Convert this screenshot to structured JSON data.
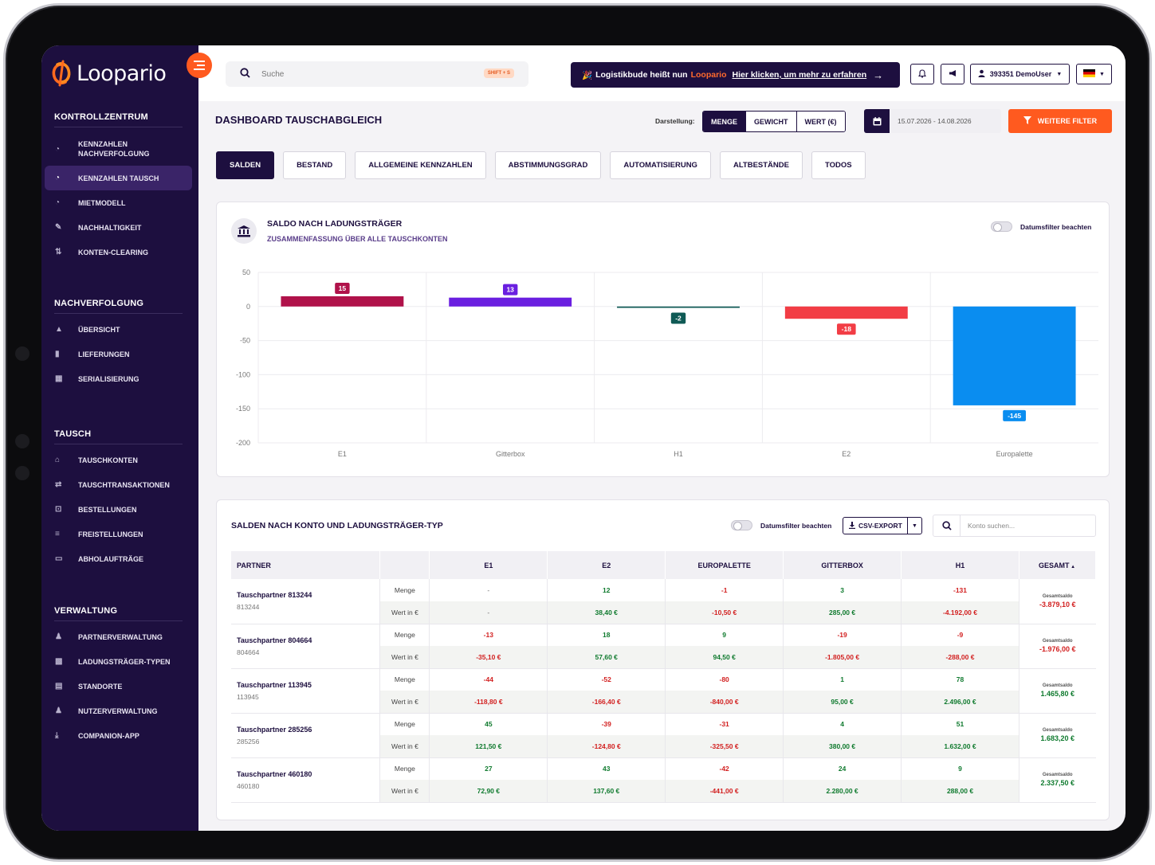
{
  "brand": {
    "name": "Loopario"
  },
  "sidebar": {
    "sections": [
      {
        "title": "KONTROLLZENTRUM",
        "items": [
          {
            "label": "KENNZAHLEN NACHVERFOLGUNG",
            "icon": "gauge-icon"
          },
          {
            "label": "KENNZAHLEN TAUSCH",
            "icon": "gauge-icon",
            "active": true
          },
          {
            "label": "MIETMODELL",
            "icon": "gauge-icon"
          },
          {
            "label": "NACHHALTIGKEIT",
            "icon": "leaf-icon"
          },
          {
            "label": "KONTEN-CLEARING",
            "icon": "sync-icon"
          }
        ]
      },
      {
        "title": "NACHVERFOLGUNG",
        "items": [
          {
            "label": "ÜBERSICHT",
            "icon": "boxes-icon"
          },
          {
            "label": "LIEFERUNGEN",
            "icon": "document-icon"
          },
          {
            "label": "SERIALISIERUNG",
            "icon": "grid-icon"
          }
        ]
      },
      {
        "title": "TAUSCH",
        "items": [
          {
            "label": "TAUSCHKONTEN",
            "icon": "bank-icon"
          },
          {
            "label": "TAUSCHTRANSAKTIONEN",
            "icon": "swap-icon"
          },
          {
            "label": "BESTELLUNGEN",
            "icon": "cart-icon"
          },
          {
            "label": "FREISTELLUNGEN",
            "icon": "list-icon"
          },
          {
            "label": "ABHOLAUFTRÄGE",
            "icon": "inbox-icon"
          }
        ]
      },
      {
        "title": "VERWALTUNG",
        "items": [
          {
            "label": "PARTNERVERWALTUNG",
            "icon": "users-icon"
          },
          {
            "label": "LADUNGSTRÄGER-TYPEN",
            "icon": "cubes-icon"
          },
          {
            "label": "STANDORTE",
            "icon": "map-icon"
          },
          {
            "label": "NUTZERVERWALTUNG",
            "icon": "users-icon"
          },
          {
            "label": "COMPANION-APP",
            "icon": "download-icon"
          }
        ]
      }
    ]
  },
  "topbar": {
    "search_placeholder": "Suche",
    "search_shortcut": "SHIFT + S",
    "banner_text": "Logistikbude heißt nun",
    "banner_brand": "Loopario",
    "banner_link": "Hier klicken, um mehr zu erfahren",
    "user_label": "393351 DemoUser"
  },
  "header": {
    "title": "DASHBOARD TAUSCHABGLEICH",
    "darstellung_label": "Darstellung:",
    "modes": [
      "MENGE",
      "GEWICHT",
      "WERT (€)"
    ],
    "active_mode": "MENGE",
    "date_range": "15.07.2026 - 14.08.2026",
    "filter_label": "WEITERE FILTER"
  },
  "tabs": [
    "SALDEN",
    "BESTAND",
    "ALLGEMEINE KENNZAHLEN",
    "ABSTIMMUNGSGRAD",
    "AUTOMATISIERUNG",
    "ALTBESTÄNDE",
    "TODOS"
  ],
  "chart_card": {
    "title": "SALDO NACH LADUNGSTRÄGER",
    "subtitle": "ZUSAMMENFASSUNG ÜBER ALLE TAUSCHKONTEN",
    "toggle_label": "Datumsfilter beachten"
  },
  "chart_data": {
    "type": "bar",
    "categories": [
      "E1",
      "Gitterbox",
      "H1",
      "E2",
      "Europalette"
    ],
    "values": [
      15,
      13,
      -2,
      -18,
      -145
    ],
    "colors": [
      "#b0124a",
      "#6a1fe0",
      "#0f5a55",
      "#f23d45",
      "#0a8df0"
    ],
    "yticks": [
      50,
      0,
      -50,
      -100,
      -150,
      -200
    ],
    "ylim": [
      -200,
      50
    ],
    "grid": true
  },
  "table_card": {
    "title": "SALDEN NACH KONTO UND LADUNGSTRÄGER-TYP",
    "toggle_label": "Datumsfilter beachten",
    "export_label": "CSV-EXPORT",
    "search_placeholder": "Konto suchen...",
    "columns": [
      "PARTNER",
      "",
      "E1",
      "E2",
      "EUROPALETTE",
      "GITTERBOX",
      "H1",
      "GESAMT"
    ],
    "row_labels": [
      "Menge",
      "Wert in €"
    ],
    "gesamt_label": "Gesamtsaldo",
    "rows": [
      {
        "name": "Tauschpartner 813244",
        "id": "813244",
        "menge": [
          "-",
          "12",
          "-1",
          "3",
          "-131"
        ],
        "wert": [
          "-",
          "38,40 €",
          "-10,50 €",
          "285,00 €",
          "-4.192,00 €"
        ],
        "gesamt": "-3.879,10 €"
      },
      {
        "name": "Tauschpartner 804664",
        "id": "804664",
        "menge": [
          "-13",
          "18",
          "9",
          "-19",
          "-9"
        ],
        "wert": [
          "-35,10 €",
          "57,60 €",
          "94,50 €",
          "-1.805,00 €",
          "-288,00 €"
        ],
        "gesamt": "-1.976,00 €"
      },
      {
        "name": "Tauschpartner 113945",
        "id": "113945",
        "menge": [
          "-44",
          "-52",
          "-80",
          "1",
          "78"
        ],
        "wert": [
          "-118,80 €",
          "-166,40 €",
          "-840,00 €",
          "95,00 €",
          "2.496,00 €"
        ],
        "gesamt": "1.465,80 €"
      },
      {
        "name": "Tauschpartner 285256",
        "id": "285256",
        "menge": [
          "45",
          "-39",
          "-31",
          "4",
          "51"
        ],
        "wert": [
          "121,50 €",
          "-124,80 €",
          "-325,50 €",
          "380,00 €",
          "1.632,00 €"
        ],
        "gesamt": "1.683,20 €"
      },
      {
        "name": "Tauschpartner 460180",
        "id": "460180",
        "menge": [
          "27",
          "43",
          "-42",
          "24",
          "9"
        ],
        "wert": [
          "72,90 €",
          "137,60 €",
          "-441,00 €",
          "2.280,00 €",
          "288,00 €"
        ],
        "gesamt": "2.337,50 €"
      }
    ]
  },
  "colors": {
    "primary": "#1d0f3f",
    "accent": "#ff5a1f",
    "positive": "#0f7a2e",
    "negative": "#d21f1f"
  }
}
